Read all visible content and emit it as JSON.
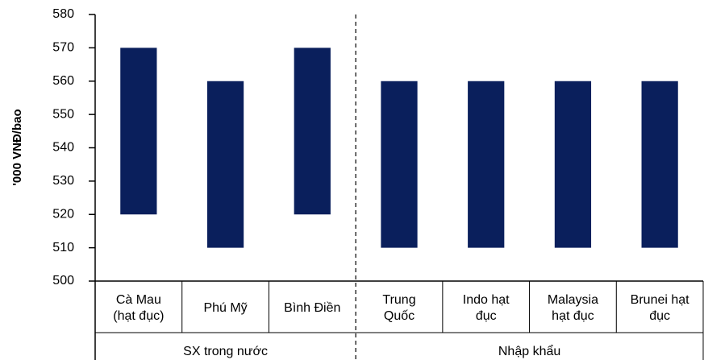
{
  "chart_data": {
    "type": "bar",
    "y_label": "'000 VNĐ/bao",
    "color": "#0a1f5c",
    "ylim": [
      500,
      580
    ],
    "yticks": [
      500,
      510,
      520,
      530,
      540,
      550,
      560,
      570,
      580
    ],
    "groups": [
      {
        "label": "SX trong nước",
        "categories": [
          [
            "Cà Mau",
            "(hạt đục)"
          ],
          [
            "Phú Mỹ"
          ],
          [
            "Bình Điền"
          ]
        ],
        "low": [
          520,
          510,
          520
        ],
        "high": [
          570,
          560,
          570
        ]
      },
      {
        "label": "Nhập khẩu",
        "categories": [
          [
            "Trung",
            "Quốc"
          ],
          [
            "Indo hạt",
            "đục"
          ],
          [
            "Malaysia",
            "hạt đục"
          ],
          [
            "Brunei hạt",
            "đục"
          ]
        ],
        "low": [
          510,
          510,
          510,
          510
        ],
        "high": [
          560,
          560,
          560,
          560
        ]
      }
    ]
  }
}
